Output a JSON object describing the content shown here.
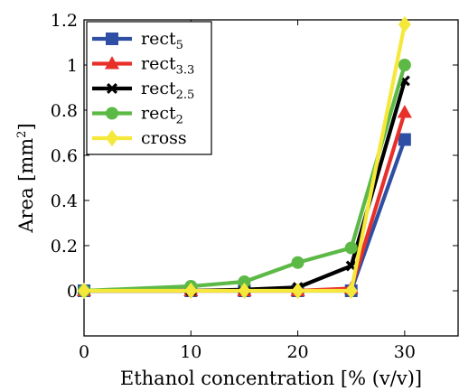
{
  "chart_data": {
    "type": "line",
    "xlabel": "Ethanol concentration [% (v/v)]",
    "ylabel_main": "Area [mm",
    "ylabel_sup": "2",
    "ylabel_end": "]",
    "xlim": [
      0,
      35
    ],
    "ylim": [
      -0.2,
      1.2
    ],
    "xticks": [
      0,
      10,
      20,
      30
    ],
    "xtick_labels": [
      "0",
      "10",
      "20",
      "30"
    ],
    "yticks": [
      0,
      0.2,
      0.4,
      0.6,
      0.8,
      1,
      1.2
    ],
    "ytick_labels": [
      "0",
      "0.2",
      "0.4",
      "0.6",
      "0.8",
      "1",
      "1.2"
    ],
    "grid": false,
    "legend_position": "top-left",
    "x": [
      0,
      10,
      15,
      20,
      25,
      30
    ],
    "series": [
      {
        "name": "rect",
        "sub": "5",
        "color": "#2e4fa3",
        "marker": "square",
        "values": [
          0,
          0,
          0,
          0,
          0,
          0.67
        ]
      },
      {
        "name": "rect",
        "sub": "3.3",
        "color": "#e8302a",
        "marker": "triangle",
        "values": [
          0,
          0,
          0,
          0,
          0.01,
          0.79
        ]
      },
      {
        "name": "rect",
        "sub": "2.5",
        "color": "#000000",
        "marker": "x",
        "values": [
          0,
          0,
          0.005,
          0.015,
          0.11,
          0.93
        ]
      },
      {
        "name": "rect",
        "sub": "2",
        "color": "#5cb946",
        "marker": "circle",
        "values": [
          0,
          0.02,
          0.04,
          0.125,
          0.19,
          1.0
        ]
      },
      {
        "name": "cross",
        "sub": "",
        "color": "#f5e83a",
        "marker": "diamond",
        "values": [
          0,
          0,
          0,
          0,
          0,
          1.18
        ]
      }
    ]
  }
}
